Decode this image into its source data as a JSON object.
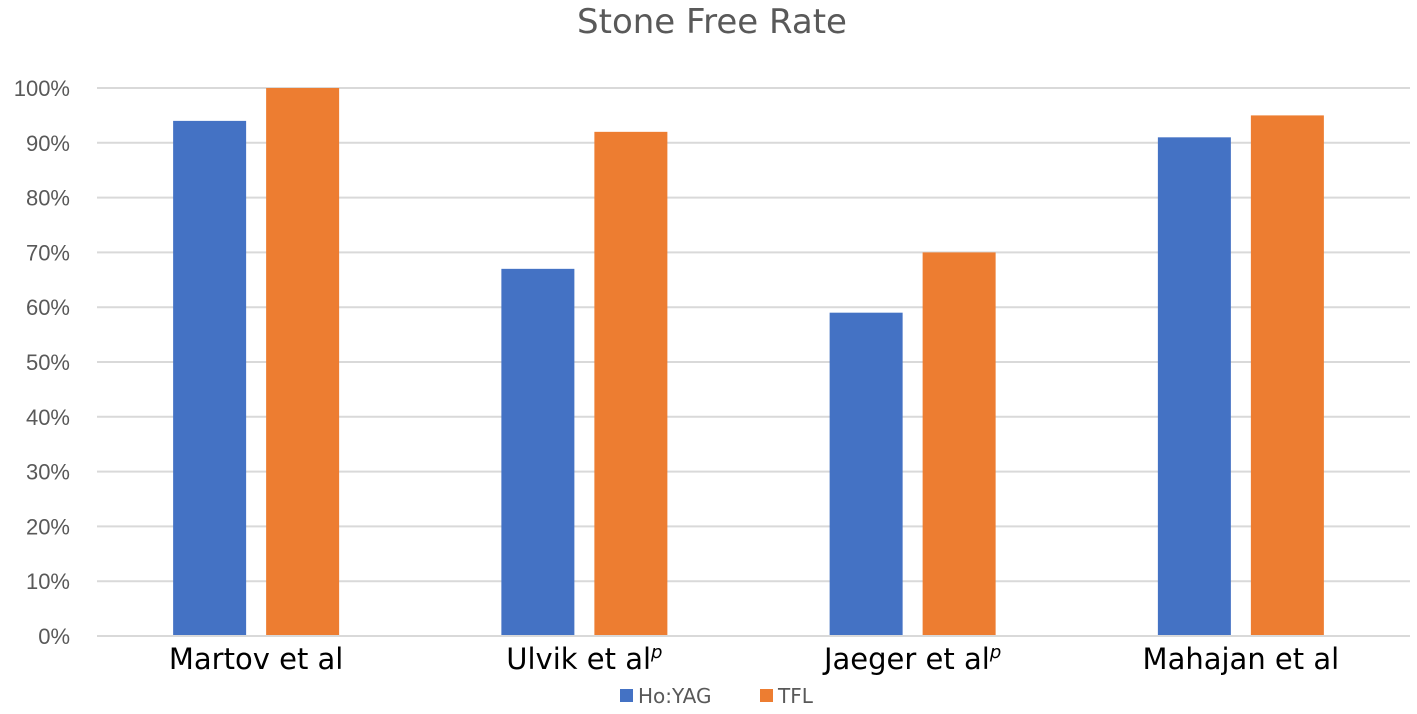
{
  "chart_data": {
    "type": "bar",
    "title": "Stone Free Rate",
    "categories": [
      {
        "label": "Martov et al",
        "sup": ""
      },
      {
        "label": "Ulvik et al",
        "sup": "p"
      },
      {
        "label": "Jaeger et al",
        "sup": "p"
      },
      {
        "label": "Mahajan et al",
        "sup": ""
      }
    ],
    "series": [
      {
        "name": "Ho:YAG",
        "color": "#4472C4",
        "values": [
          94,
          67,
          59,
          91
        ]
      },
      {
        "name": "TFL",
        "color": "#ED7D31",
        "values": [
          100,
          92,
          70,
          95
        ]
      }
    ],
    "ylim": [
      0,
      100
    ],
    "yticks": [
      "0%",
      "10%",
      "20%",
      "30%",
      "40%",
      "50%",
      "60%",
      "70%",
      "80%",
      "90%",
      "100%"
    ],
    "grid": true,
    "legend": "bottom"
  }
}
